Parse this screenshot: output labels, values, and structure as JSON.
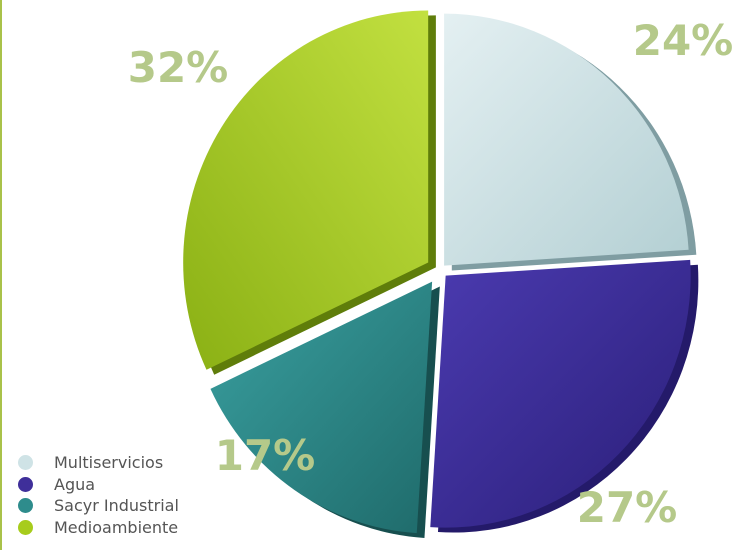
{
  "chart_data": {
    "type": "pie",
    "style": "3d-exploded",
    "categories": [
      "Multiservicios",
      "Agua",
      "Sacyr Industrial",
      "Medioambiente"
    ],
    "values": [
      24,
      27,
      17,
      32
    ],
    "data_labels": [
      "24%",
      "27%",
      "17%",
      "32%"
    ],
    "colors": [
      "#cfe3e6",
      "#3f2f9a",
      "#2e8c8c",
      "#a7cc1c"
    ],
    "legend_position": "bottom-left",
    "title": "",
    "accent_line_color": "#a9c24a"
  }
}
